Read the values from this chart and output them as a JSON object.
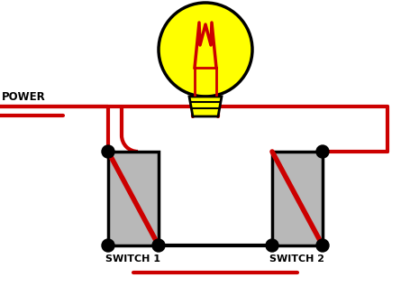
{
  "bg_color": "#ffffff",
  "wire_color_red": "#cc0000",
  "wire_color_black": "#000000",
  "bulb_color": "#ffff00",
  "bulb_outline": "#000000",
  "filament_color": "#cc0000",
  "switch_body_color": "#b8b8b8",
  "switch_outline": "#000000",
  "text_color": "#000000",
  "power_label": "POWER",
  "switch1_label": "SWITCH 1",
  "switch2_label": "SWITCH 2",
  "wire_lw": 3.0,
  "figw": 4.56,
  "figh": 3.28,
  "dpi": 100
}
